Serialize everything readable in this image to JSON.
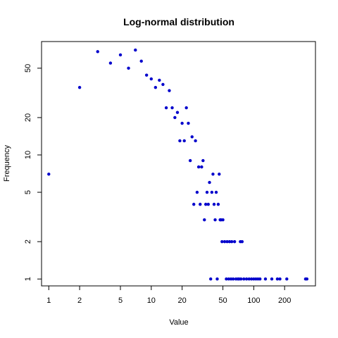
{
  "chart_data": {
    "type": "scatter",
    "title": "Log-normal distribution",
    "xlabel": "Value",
    "ylabel": "Frequency",
    "x_scale": "log",
    "y_scale": "log",
    "xlim": [
      0.85,
      400
    ],
    "ylim": [
      0.88,
      82
    ],
    "x_ticks": [
      1,
      2,
      5,
      10,
      20,
      50,
      100,
      200
    ],
    "y_ticks": [
      1,
      2,
      5,
      10,
      20,
      50
    ],
    "grid": false,
    "legend": "none",
    "point_color": "#0000cc",
    "points": [
      [
        1,
        7
      ],
      [
        2,
        35
      ],
      [
        3,
        68
      ],
      [
        4,
        55
      ],
      [
        5,
        64
      ],
      [
        6,
        50
      ],
      [
        7,
        70
      ],
      [
        8,
        57
      ],
      [
        9,
        44
      ],
      [
        10,
        41
      ],
      [
        11,
        35
      ],
      [
        12,
        40
      ],
      [
        13,
        37
      ],
      [
        14,
        24
      ],
      [
        15,
        33
      ],
      [
        16,
        24
      ],
      [
        17,
        20
      ],
      [
        18,
        22
      ],
      [
        19,
        13
      ],
      [
        20,
        18
      ],
      [
        21,
        13
      ],
      [
        22,
        24
      ],
      [
        23,
        18
      ],
      [
        24,
        9
      ],
      [
        25,
        14
      ],
      [
        26,
        4
      ],
      [
        27,
        13
      ],
      [
        28,
        5
      ],
      [
        29,
        8
      ],
      [
        30,
        4
      ],
      [
        31,
        8
      ],
      [
        32,
        9
      ],
      [
        33,
        3
      ],
      [
        34,
        4
      ],
      [
        35,
        5
      ],
      [
        36,
        4
      ],
      [
        37,
        6
      ],
      [
        38,
        1
      ],
      [
        39,
        5
      ],
      [
        40,
        7
      ],
      [
        41,
        4
      ],
      [
        42,
        3
      ],
      [
        43,
        5
      ],
      [
        44,
        1
      ],
      [
        45,
        4
      ],
      [
        46,
        7
      ],
      [
        47,
        3
      ],
      [
        48,
        3
      ],
      [
        49,
        2
      ],
      [
        50,
        3
      ],
      [
        52,
        2
      ],
      [
        54,
        1
      ],
      [
        55,
        2
      ],
      [
        57,
        1
      ],
      [
        58,
        2
      ],
      [
        60,
        1
      ],
      [
        61,
        2
      ],
      [
        63,
        1
      ],
      [
        65,
        2
      ],
      [
        67,
        1
      ],
      [
        70,
        1
      ],
      [
        72,
        1
      ],
      [
        74,
        2
      ],
      [
        75,
        1
      ],
      [
        77,
        2
      ],
      [
        80,
        1
      ],
      [
        85,
        1
      ],
      [
        90,
        1
      ],
      [
        95,
        1
      ],
      [
        100,
        1
      ],
      [
        105,
        1
      ],
      [
        110,
        1
      ],
      [
        115,
        1
      ],
      [
        130,
        1
      ],
      [
        150,
        1
      ],
      [
        170,
        1
      ],
      [
        180,
        1
      ],
      [
        210,
        1
      ],
      [
        320,
        1
      ],
      [
        330,
        1
      ]
    ]
  }
}
